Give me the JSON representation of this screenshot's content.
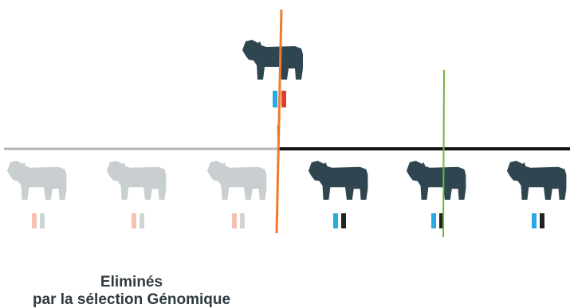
{
  "caption": {
    "line1": "Eliminés",
    "line2": "par la sélection Génomique"
  },
  "colors": {
    "cow_kept": "#2f4650",
    "cow_eliminated": "#c9cfd1",
    "line_left": "#b5b5b5",
    "line_right": "#111111",
    "orange_line": "#f07a2a",
    "green_line": "#6cb83c",
    "marker_blue": "#29a9e1",
    "marker_red": "#e23b30",
    "marker_black": "#222222",
    "marker_pink": "#f6c1b5",
    "marker_grey": "#cfd4d6"
  },
  "parent": {
    "icon": "cow-icon",
    "markers": [
      "marker_blue",
      "marker_red"
    ]
  },
  "offspring": [
    {
      "icon": "cow-icon",
      "status": "eliminated",
      "markers": [
        "marker_pink",
        "marker_grey"
      ]
    },
    {
      "icon": "cow-icon",
      "status": "eliminated",
      "markers": [
        "marker_pink",
        "marker_grey"
      ]
    },
    {
      "icon": "cow-icon",
      "status": "eliminated",
      "markers": [
        "marker_pink",
        "marker_grey"
      ]
    },
    {
      "icon": "cow-icon",
      "status": "kept",
      "markers": [
        "marker_blue",
        "marker_black"
      ]
    },
    {
      "icon": "cow-icon",
      "status": "kept",
      "markers": [
        "marker_blue",
        "marker_black"
      ]
    },
    {
      "icon": "cow-icon",
      "status": "kept",
      "markers": [
        "marker_blue",
        "marker_black"
      ]
    }
  ]
}
